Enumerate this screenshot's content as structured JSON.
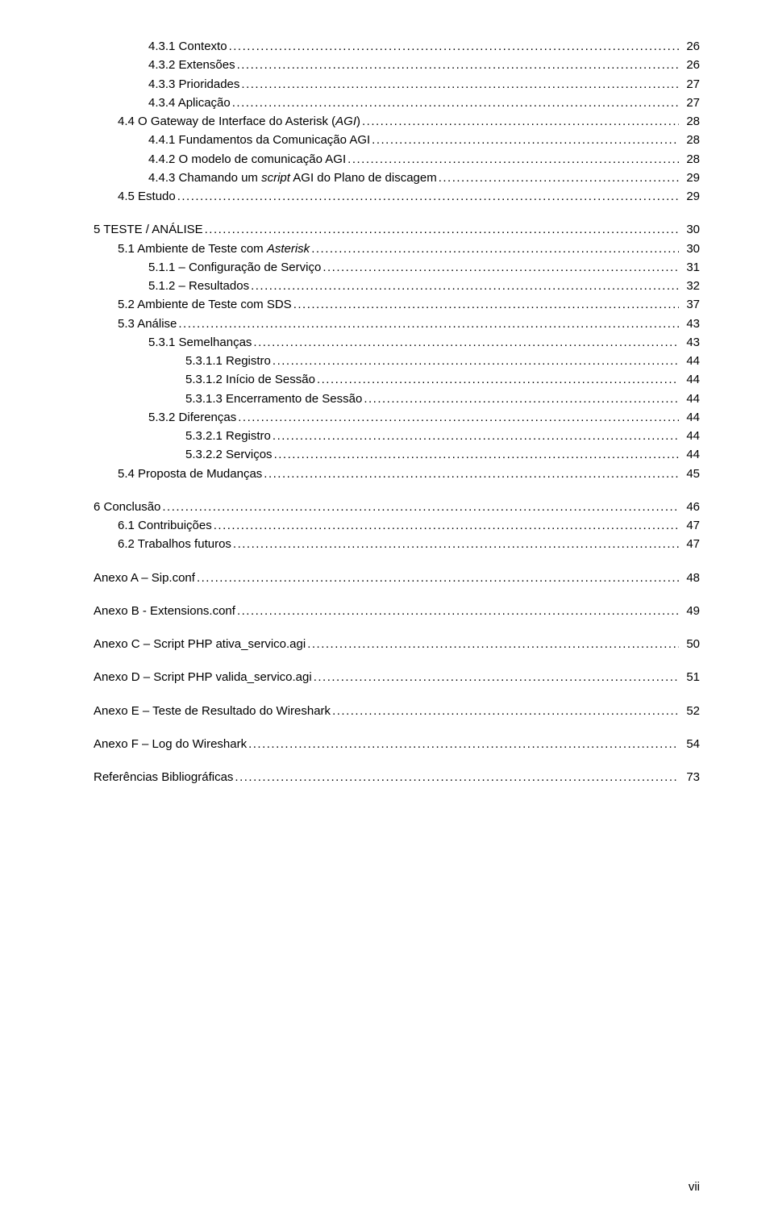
{
  "toc": [
    {
      "indent": 3,
      "label": "4.3.1    Contexto",
      "page": "26"
    },
    {
      "indent": 3,
      "label": "4.3.2    Extensões",
      "page": "26"
    },
    {
      "indent": 3,
      "label": "4.3.3    Prioridades",
      "page": "27"
    },
    {
      "indent": 3,
      "label": "4.3.4    Aplicação",
      "page": "27"
    },
    {
      "indent": 2,
      "label": "4.4    O Gateway de Interface do Asterisk (",
      "italic": "AGI",
      "after": ")",
      "page": "28"
    },
    {
      "indent": 3,
      "label": "4.4.1    Fundamentos da Comunicação AGI",
      "page": "28"
    },
    {
      "indent": 3,
      "label": "4.4.2    O modelo de comunicação AGI",
      "page": "28"
    },
    {
      "indent": 3,
      "label": "4.4.3    Chamando um ",
      "italic": "script",
      "after": " AGI do Plano de discagem",
      "page": "29"
    },
    {
      "indent": 2,
      "label": "4.5    Estudo",
      "page": "29"
    },
    {
      "gap": "med"
    },
    {
      "indent": 0,
      "label": "5    TESTE / ANÁLISE",
      "page": "30"
    },
    {
      "indent": 2,
      "label": "5.1    Ambiente de Teste com ",
      "italic": "Asterisk",
      "page": "30"
    },
    {
      "indent": 3,
      "label": "5.1.1    – Configuração de Serviço",
      "page": "31"
    },
    {
      "indent": 3,
      "label": "5.1.2    – Resultados",
      "page": "32"
    },
    {
      "indent": 2,
      "label": "5.2    Ambiente de Teste com SDS",
      "page": "37"
    },
    {
      "indent": 2,
      "label": "5.3    Análise",
      "page": "43"
    },
    {
      "indent": 3,
      "label": "5.3.1    Semelhanças",
      "page": "43"
    },
    {
      "indent": 4,
      "label": "5.3.1.1    Registro",
      "page": "44"
    },
    {
      "indent": 4,
      "label": "5.3.1.2    Início de Sessão",
      "page": "44"
    },
    {
      "indent": 4,
      "label": "5.3.1.3    Encerramento de Sessão",
      "page": "44"
    },
    {
      "indent": 3,
      "label": "5.3.2    Diferenças",
      "page": "44"
    },
    {
      "indent": 4,
      "label": "5.3.2.1    Registro",
      "page": "44"
    },
    {
      "indent": 4,
      "label": "5.3.2.2    Serviços",
      "page": "44"
    },
    {
      "indent": 2,
      "label": "5.4    Proposta de Mudanças",
      "page": "45"
    },
    {
      "gap": "med"
    },
    {
      "indent": 0,
      "label": "6    Conclusão",
      "page": "46"
    },
    {
      "indent": 2,
      "label": "6.1    Contribuições",
      "page": "47"
    },
    {
      "indent": 2,
      "label": "6.2    Trabalhos futuros",
      "page": "47"
    },
    {
      "gap": "med"
    },
    {
      "indent": 0,
      "label": "Anexo A – Sip.conf",
      "page": "48"
    },
    {
      "gap": "med"
    },
    {
      "indent": 0,
      "label": "Anexo B - Extensions.conf",
      "page": "49"
    },
    {
      "gap": "med"
    },
    {
      "indent": 0,
      "label": "Anexo C – Script PHP ativa_servico.agi",
      "page": "50"
    },
    {
      "gap": "med"
    },
    {
      "indent": 0,
      "label": "Anexo D – Script PHP valida_servico.agi",
      "page": "51"
    },
    {
      "gap": "med"
    },
    {
      "indent": 0,
      "label": "Anexo  E  –  Teste  de  Resultado  do  Wireshark",
      "page": "52",
      "noSpaceBeforePage": true
    },
    {
      "gap": "med"
    },
    {
      "indent": 0,
      "label": "Anexo F – Log do Wireshark",
      "page": "54",
      "noSpaceBeforePage": true
    },
    {
      "gap": "med"
    },
    {
      "indent": 0,
      "label": "Referências Bibliográficas",
      "page": "73"
    }
  ],
  "pageNumber": "vii"
}
